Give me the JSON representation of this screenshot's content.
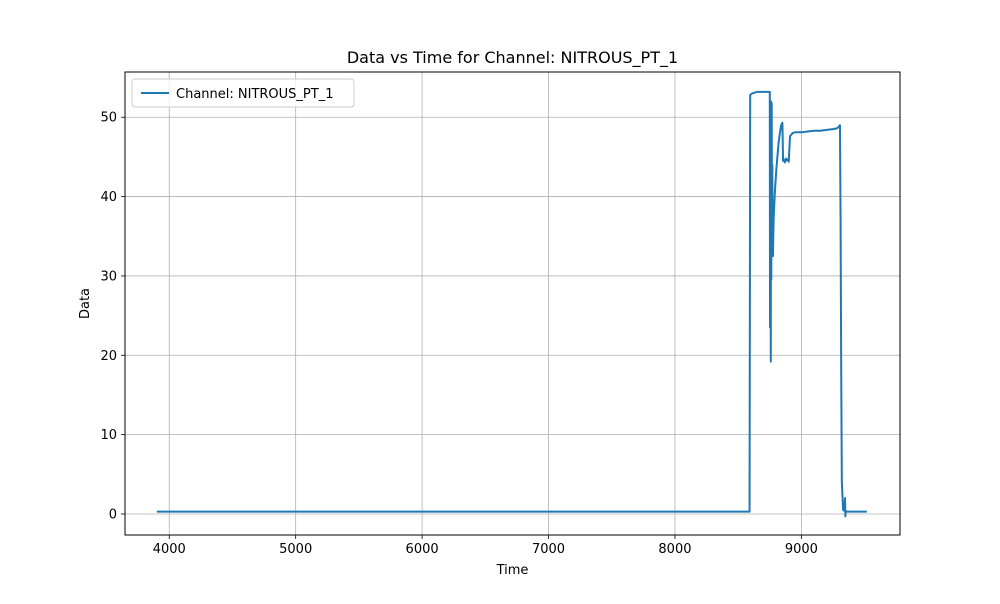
{
  "chart_data": {
    "type": "line",
    "title": "Data vs Time for Channel: NITROUS_PT_1",
    "xlabel": "Time",
    "ylabel": "Data",
    "xlim": [
      3650,
      9780
    ],
    "ylim": [
      -2.65,
      55.7
    ],
    "x_ticks": [
      4000,
      5000,
      6000,
      7000,
      8000,
      9000
    ],
    "y_ticks": [
      0,
      10,
      20,
      30,
      40,
      50
    ],
    "grid": true,
    "legend_position": "top-left",
    "series": [
      {
        "name": "Channel: NITROUS_PT_1",
        "color": "#1f77b4",
        "x": [
          3910,
          8590,
          8595,
          8610,
          8650,
          8700,
          8750,
          8752,
          8755,
          8758,
          8760,
          8762,
          8765,
          8768,
          8770,
          8772,
          8775,
          8780,
          8790,
          8800,
          8810,
          8820,
          8830,
          8840,
          8850,
          8855,
          8860,
          8870,
          8880,
          8890,
          8900,
          8910,
          8920,
          8930,
          8950,
          9000,
          9050,
          9100,
          9150,
          9200,
          9250,
          9280,
          9290,
          9300,
          9305,
          9310,
          9315,
          9320,
          9330,
          9340,
          9345,
          9348,
          9350,
          9352,
          9355,
          9360,
          9400,
          9450,
          9500,
          9510
        ],
        "y": [
          0.3,
          0.3,
          52.8,
          53.0,
          53.2,
          53.2,
          53.2,
          23.5,
          51.5,
          19.2,
          52.0,
          29.5,
          51.8,
          33.0,
          44.0,
          33.0,
          32.5,
          37.0,
          40.5,
          43.0,
          45.0,
          46.8,
          48.0,
          49.0,
          49.3,
          44.5,
          44.7,
          44.3,
          44.8,
          44.6,
          44.4,
          47.6,
          47.8,
          48.0,
          48.1,
          48.1,
          48.2,
          48.3,
          48.3,
          48.4,
          48.5,
          48.6,
          48.7,
          48.9,
          49.0,
          37.0,
          18.0,
          4.0,
          0.5,
          0.4,
          2.0,
          -0.3,
          0.4,
          0.3,
          0.3,
          0.3,
          0.3,
          0.3,
          0.3,
          0.3
        ]
      }
    ]
  }
}
